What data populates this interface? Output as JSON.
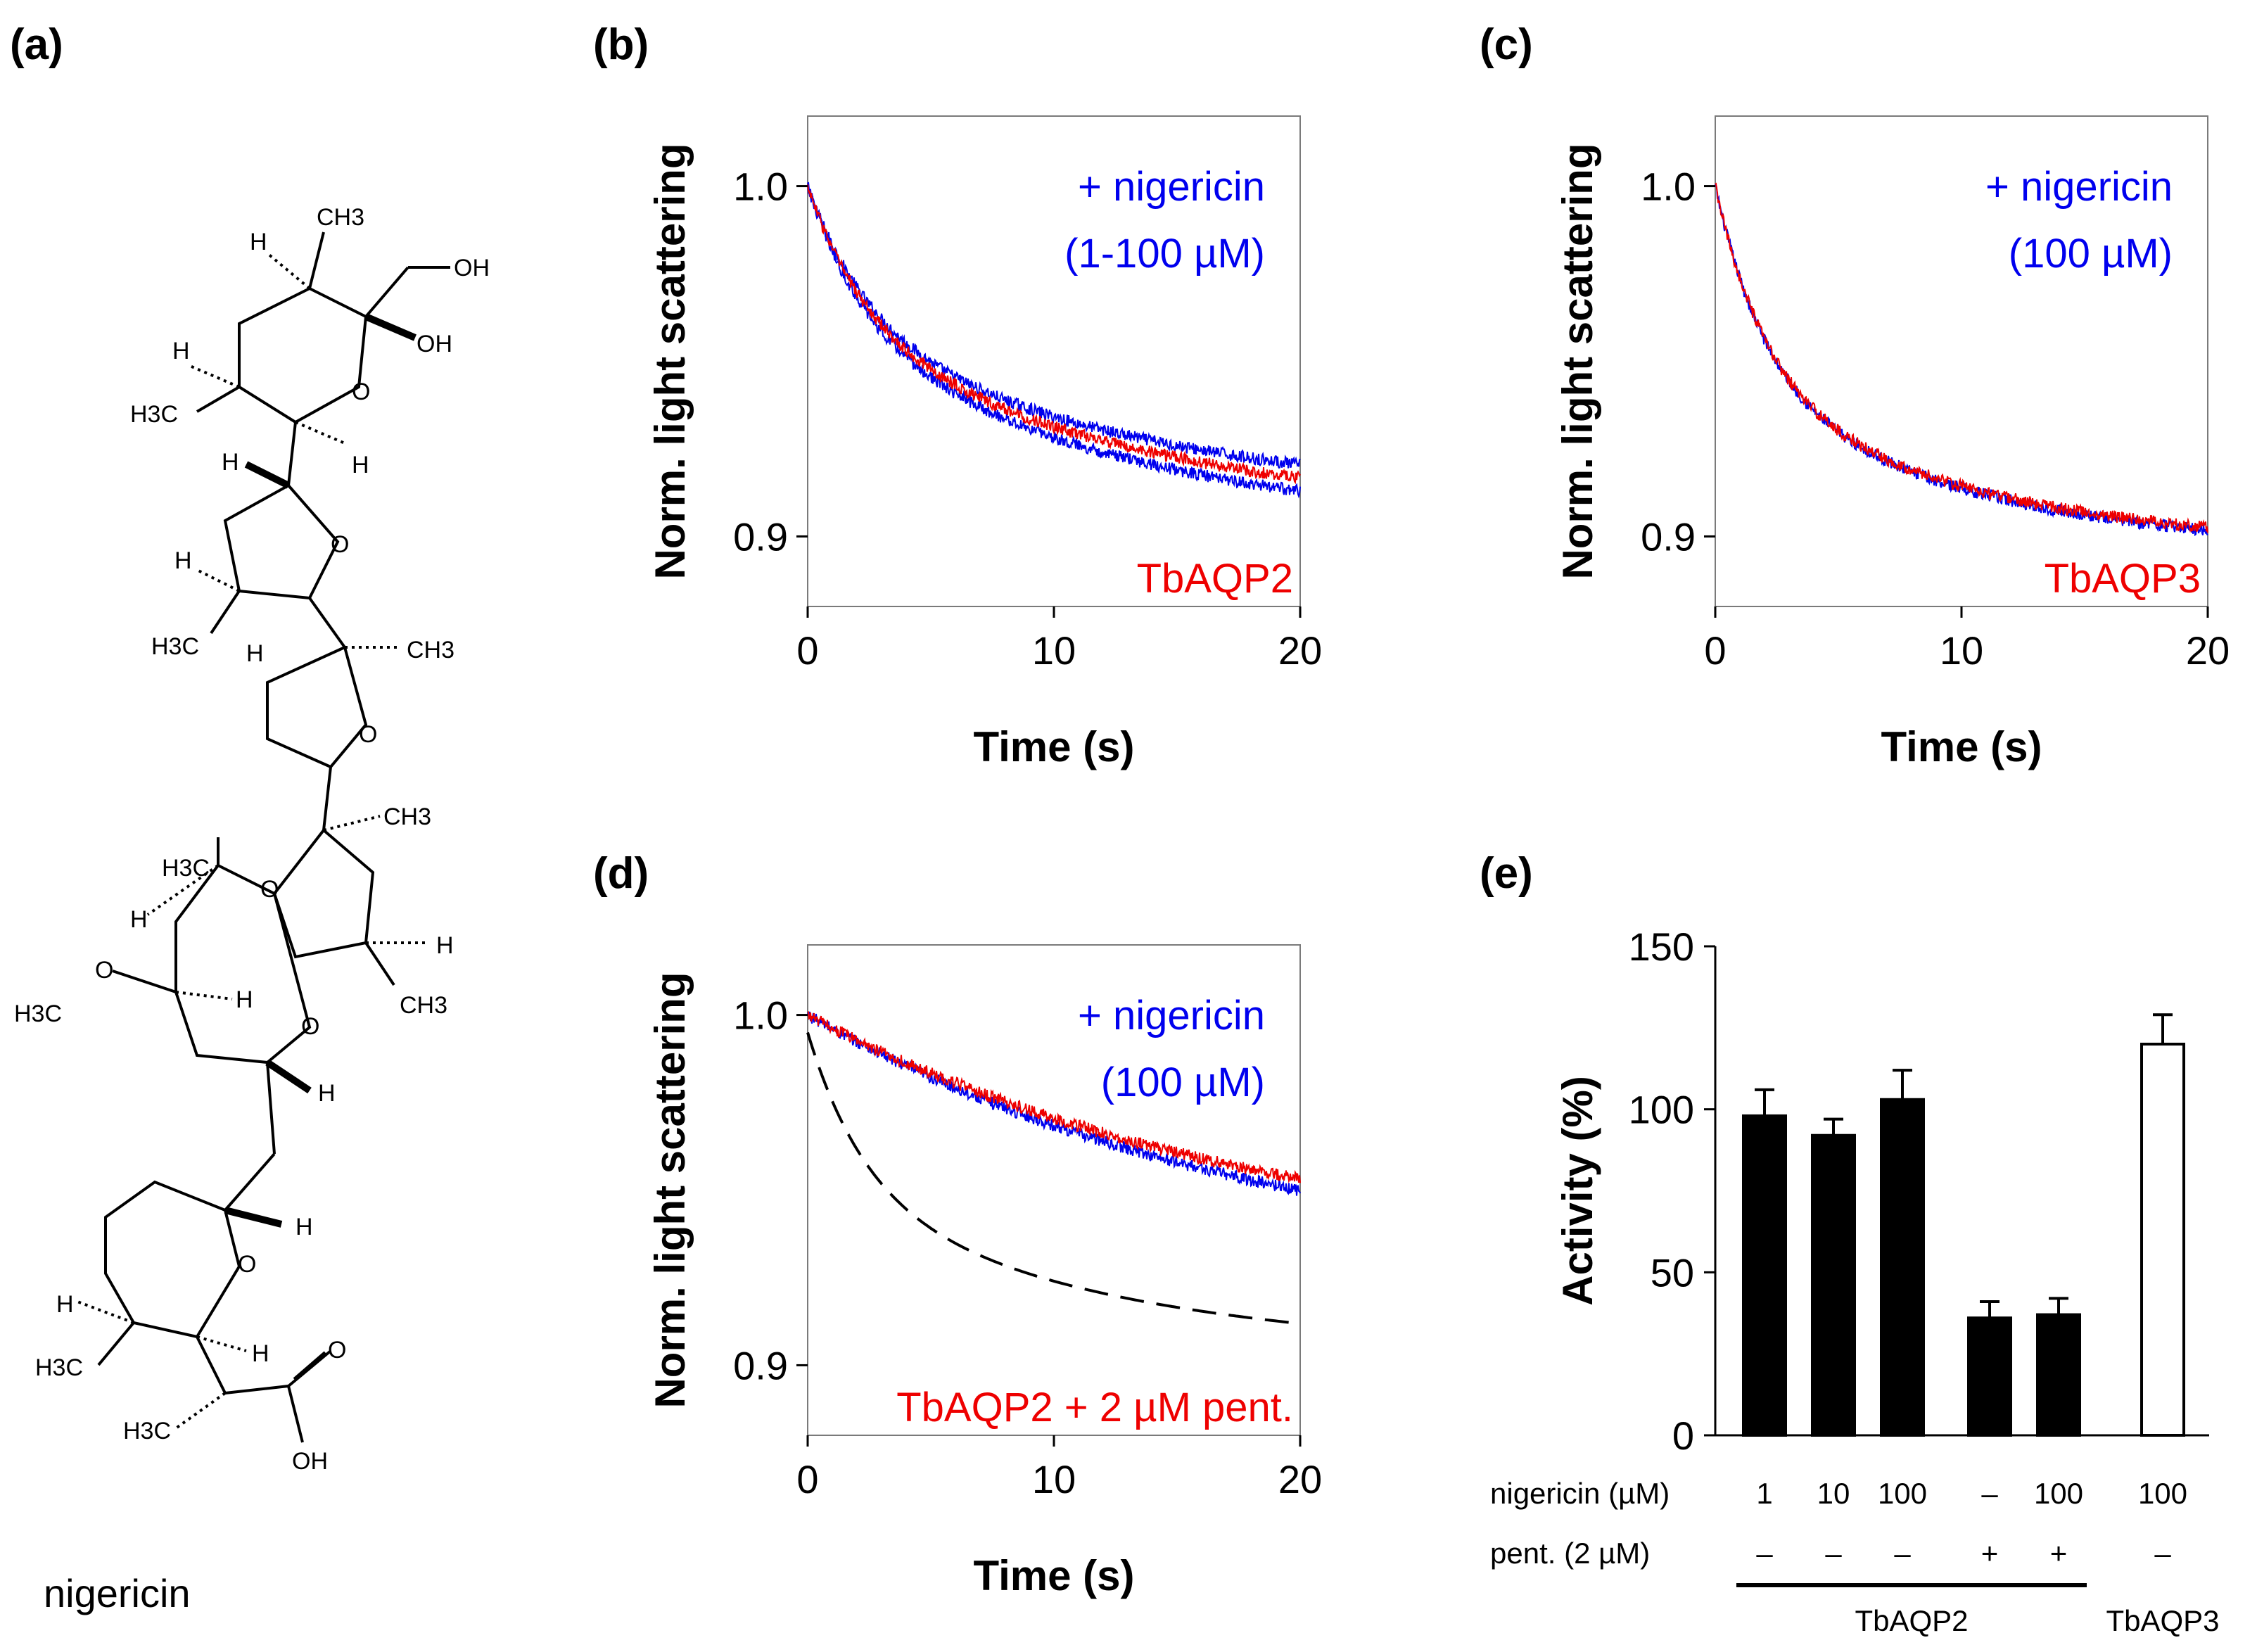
{
  "colors": {
    "blue": "#0000ee",
    "red": "#ee0000",
    "black": "#000000",
    "axis_frame": "#7a7a7a"
  },
  "panels": {
    "a": {
      "label": "(a)",
      "caption": "nigericin",
      "structure_labels": {
        "ch3": "CH3",
        "h3c": "H3C",
        "h": "H",
        "o": "O",
        "oh": "OH"
      }
    },
    "b": {
      "label": "(b)"
    },
    "c": {
      "label": "(c)"
    },
    "d": {
      "label": "(d)"
    },
    "e": {
      "label": "(e)",
      "row1_label": "nigericin (µM)",
      "row2_label": "pent. (2 µM)",
      "group_labels": [
        "TbAQP2",
        "TbAQP3"
      ]
    }
  },
  "chart_data": [
    {
      "id": "b",
      "type": "line",
      "ylabel": "Norm. light scattering",
      "xlabel": "Time (s)",
      "xlim": [
        0,
        20
      ],
      "ylim": [
        0.88,
        1.02
      ],
      "xticks": [
        0,
        10,
        20
      ],
      "yticks": [
        0.9,
        1.0
      ],
      "ytick_labels": [
        "0.9",
        "1.0"
      ],
      "annotation_blue": [
        "+ nigericin",
        "(1-100 µM)"
      ],
      "annotation_red": "TbAQP2",
      "series": [
        {
          "name": "+ nigericin (1-100 µM) upper",
          "color": "blue",
          "noisy": true,
          "y0": 1.0,
          "amplitudes": [
            0.04,
            0.052
          ],
          "taus": [
            2.5,
            14
          ]
        },
        {
          "name": "+ nigericin (1-100 µM) lower",
          "color": "blue",
          "noisy": true,
          "y0": 1.0,
          "amplitudes": [
            0.04,
            0.06
          ],
          "taus": [
            2.3,
            13
          ]
        },
        {
          "name": "TbAQP2",
          "color": "red",
          "noisy": true,
          "y0": 1.0,
          "amplitudes": [
            0.04,
            0.056
          ],
          "taus": [
            2.4,
            13.5
          ]
        }
      ]
    },
    {
      "id": "c",
      "type": "line",
      "ylabel": "Norm. light scattering",
      "xlabel": "Time (s)",
      "xlim": [
        0,
        20
      ],
      "ylim": [
        0.88,
        1.02
      ],
      "xticks": [
        0,
        10,
        20
      ],
      "yticks": [
        0.9,
        1.0
      ],
      "ytick_labels": [
        "0.9",
        "1.0"
      ],
      "annotation_blue": [
        "+ nigericin",
        "(100 µM)"
      ],
      "annotation_red": "TbAQP3",
      "series": [
        {
          "name": "+ nigericin (100 µM)",
          "color": "blue",
          "noisy": true,
          "y0": 1.0,
          "amplitudes": [
            0.055,
            0.05
          ],
          "taus": [
            2.0,
            10
          ]
        },
        {
          "name": "TbAQP3",
          "color": "red",
          "noisy": true,
          "y0": 1.0,
          "amplitudes": [
            0.055,
            0.049
          ],
          "taus": [
            2.0,
            10
          ]
        }
      ]
    },
    {
      "id": "d",
      "type": "line",
      "ylabel": "Norm. light scattering",
      "xlabel": "Time (s)",
      "xlim": [
        0,
        20
      ],
      "ylim": [
        0.88,
        1.02
      ],
      "xticks": [
        0,
        10,
        20
      ],
      "yticks": [
        0.9,
        1.0
      ],
      "ytick_labels": [
        "0.9",
        "1.0"
      ],
      "annotation_blue": [
        "+ nigericin",
        "(100 µM)"
      ],
      "annotation_red": "TbAQP2 + 2 µM pent.",
      "series": [
        {
          "name": "+ nigericin (100 µM)",
          "color": "blue",
          "noisy": true,
          "y0": 1.0,
          "amplitudes": [
            0.077
          ],
          "taus": [
            19
          ]
        },
        {
          "name": "TbAQP2 + 2 µM pent.",
          "color": "red",
          "noisy": true,
          "y0": 1.0,
          "amplitudes": [
            0.072
          ],
          "taus": [
            19
          ]
        },
        {
          "name": "reference (dashed)",
          "color": "black",
          "dashed": true,
          "noisy": false,
          "y0": 0.995,
          "amplitudes": [
            0.045,
            0.047
          ],
          "taus": [
            2.3,
            12
          ]
        }
      ]
    },
    {
      "id": "e",
      "type": "bar",
      "ylabel": "Activity (%)",
      "ylim": [
        0,
        150
      ],
      "yticks": [
        0,
        50,
        100,
        150
      ],
      "nigericin_uM": [
        "1",
        "10",
        "100",
        "–",
        "100",
        "100"
      ],
      "pent_2uM": [
        "–",
        "–",
        "–",
        "+",
        "+",
        "–"
      ],
      "groups": [
        "TbAQP2",
        "TbAQP2",
        "TbAQP2",
        "TbAQP2",
        "TbAQP2",
        "TbAQP3"
      ],
      "values": [
        98,
        92,
        103,
        36,
        37,
        120
      ],
      "errors": [
        8,
        5,
        9,
        5,
        5,
        9
      ],
      "fill": [
        "black",
        "black",
        "black",
        "black",
        "black",
        "white"
      ]
    }
  ]
}
